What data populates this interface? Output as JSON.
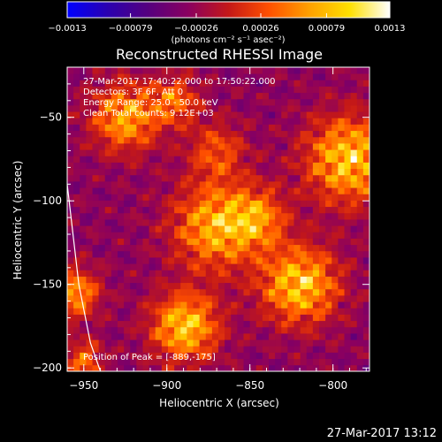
{
  "chart_data": {
    "type": "heatmap",
    "title": "Reconstructed RHESSI Image",
    "xlabel": "Heliocentric X (arcsec)",
    "ylabel": "Heliocentric Y (arcsec)",
    "xlim": [
      -960,
      -778
    ],
    "ylim": [
      -202,
      -20
    ],
    "xticks": [
      -950,
      -900,
      -850,
      -800
    ],
    "xtick_labels": [
      "−950",
      "−900",
      "−850",
      "−800"
    ],
    "yticks": [
      -50,
      -100,
      -150,
      -200
    ],
    "ytick_labels": [
      "−50",
      "−100",
      "−150",
      "−200"
    ],
    "colorbar": {
      "min": -0.0013,
      "max": 0.0013,
      "ticks": [
        -0.0013,
        -0.00079,
        -0.00026,
        0.00026,
        0.00079,
        0.0013
      ],
      "tick_labels": [
        "−0.0013",
        "−0.00079",
        "−0.00026",
        "0.00026",
        "0.00079",
        "0.0013"
      ],
      "units_label": "(photons cm⁻² s⁻¹ asec⁻²)",
      "colors": [
        "#0000ff",
        "#2a00b0",
        "#55007f",
        "#8a0060",
        "#c41818",
        "#ff5000",
        "#ffa000",
        "#ffe000",
        "#ffffff"
      ]
    },
    "annotations": [
      "27-Mar-2017 17:40:22.000 to 17:50:22.000",
      "Detectors: 3F 6F, Att 0",
      "Energy Range: 25.0 - 50.0 keV",
      "Clean    Total counts: 9.12E+03"
    ],
    "peak_label": "Position of Peak = [-889,-175]",
    "peak": {
      "x": -889,
      "y": -175
    },
    "bright_sources": [
      {
        "x": -925,
        "y": -50,
        "sigma": 14,
        "amp": 0.85
      },
      {
        "x": -895,
        "y": -40,
        "sigma": 10,
        "amp": 0.6
      },
      {
        "x": -870,
        "y": -115,
        "sigma": 18,
        "amp": 0.9
      },
      {
        "x": -845,
        "y": -110,
        "sigma": 12,
        "amp": 0.6
      },
      {
        "x": -790,
        "y": -75,
        "sigma": 18,
        "amp": 1.0
      },
      {
        "x": -820,
        "y": -150,
        "sigma": 16,
        "amp": 1.0
      },
      {
        "x": -889,
        "y": -175,
        "sigma": 14,
        "amp": 1.0
      },
      {
        "x": -955,
        "y": -155,
        "sigma": 10,
        "amp": 0.8
      },
      {
        "x": -950,
        "y": -195,
        "sigma": 8,
        "amp": 0.6
      },
      {
        "x": -870,
        "y": -70,
        "sigma": 12,
        "amp": 0.5
      }
    ],
    "limb_curve": {
      "x": [
        -960,
        -953,
        -946,
        -940
      ],
      "y": [
        -90,
        -150,
        -185,
        -202
      ]
    },
    "grid": false,
    "legend": "none"
  },
  "footer": {
    "timestamp": "27-Mar-2017 13:12"
  }
}
